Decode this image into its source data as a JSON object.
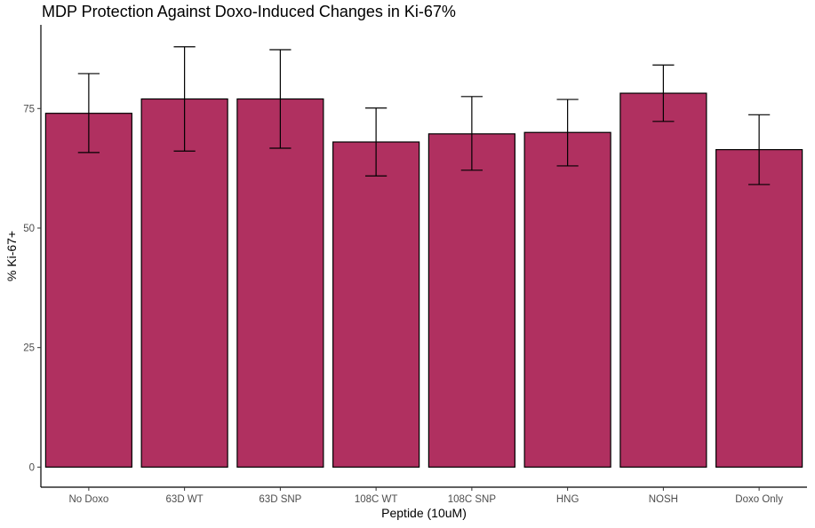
{
  "chart_data": {
    "type": "bar",
    "title": "MDP Protection Against Doxo-Induced Changes in Ki-67%",
    "xlabel": "Peptide (10uM)",
    "ylabel": "% Ki-67+",
    "categories": [
      "No Doxo",
      "63D WT",
      "63D SNP",
      "108C WT",
      "108C SNP",
      "HNG",
      "NOSH",
      "Doxo Only"
    ],
    "values": [
      74.0,
      77.0,
      77.0,
      68.0,
      69.7,
      70.0,
      78.2,
      66.4
    ],
    "error_lower": [
      65.8,
      66.1,
      66.7,
      60.9,
      62.1,
      63.0,
      72.3,
      59.1
    ],
    "error_upper": [
      82.3,
      87.9,
      87.3,
      75.1,
      77.5,
      76.9,
      84.1,
      73.7
    ],
    "y_ticks": [
      0,
      25,
      50,
      75
    ],
    "ylim": [
      -4.2,
      92.5
    ],
    "bar_color": "#b03060",
    "grid": false,
    "legend": "none"
  }
}
